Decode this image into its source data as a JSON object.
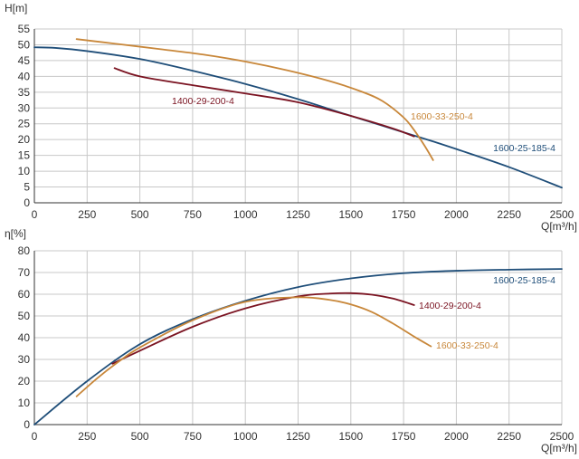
{
  "chart_data": [
    {
      "type": "line",
      "ylabel": "H[m]",
      "xlabel": "Q[m³/h]",
      "xlim": [
        0,
        2500
      ],
      "ylim": [
        0,
        55
      ],
      "xticks": [
        0,
        250,
        500,
        750,
        1000,
        1250,
        1500,
        1750,
        2000,
        2250,
        2500
      ],
      "yticks": [
        0,
        5,
        10,
        15,
        20,
        25,
        30,
        35,
        40,
        45,
        50,
        55
      ],
      "grid": true,
      "series": [
        {
          "name": "1600-25-185-4",
          "color": "#1f4e79",
          "x": [
            0,
            100,
            250,
            500,
            750,
            1000,
            1250,
            1500,
            1750,
            1900,
            2000,
            2250,
            2500
          ],
          "y": [
            49.2,
            49.0,
            48.0,
            45.5,
            41.8,
            37.6,
            32.8,
            27.5,
            22.3,
            19.2,
            17.0,
            11.3,
            4.8
          ]
        },
        {
          "name": "1400-29-200-4",
          "color": "#7b1422",
          "x": [
            380,
            500,
            750,
            1000,
            1250,
            1500,
            1700,
            1800
          ],
          "y": [
            42.6,
            40.0,
            37.2,
            34.6,
            31.8,
            27.5,
            23.5,
            21.0
          ]
        },
        {
          "name": "1600-33-250-4",
          "color": "#c8873a",
          "x": [
            200,
            400,
            600,
            800,
            1000,
            1200,
            1400,
            1550,
            1650,
            1750,
            1800,
            1850,
            1890
          ],
          "y": [
            51.8,
            50.2,
            48.6,
            46.9,
            44.7,
            41.9,
            38.5,
            35.2,
            32.2,
            27.0,
            23.0,
            18.0,
            13.5
          ]
        }
      ]
    },
    {
      "type": "line",
      "ylabel": "η[%]",
      "xlabel": "Q[m³/h]",
      "xlim": [
        0,
        2500
      ],
      "ylim": [
        0,
        80
      ],
      "xticks": [
        0,
        250,
        500,
        750,
        1000,
        1250,
        1500,
        1750,
        2000,
        2250,
        2500
      ],
      "yticks": [
        0,
        10,
        20,
        30,
        40,
        50,
        60,
        70,
        80
      ],
      "grid": true,
      "series": [
        {
          "name": "1600-25-185-4",
          "color": "#1f4e79",
          "x": [
            0,
            250,
            500,
            750,
            1000,
            1250,
            1500,
            1750,
            2000,
            2250,
            2500
          ],
          "y": [
            0,
            20,
            37,
            48.5,
            57,
            63.3,
            67.3,
            69.7,
            70.8,
            71.3,
            71.6
          ]
        },
        {
          "name": "1400-29-200-4",
          "color": "#7b1422",
          "x": [
            370,
            500,
            750,
            1000,
            1250,
            1400,
            1500,
            1600,
            1700,
            1800
          ],
          "y": [
            28,
            34,
            45,
            53.5,
            59,
            60.3,
            60.5,
            59.8,
            58,
            55
          ]
        },
        {
          "name": "1600-33-250-4",
          "color": "#c8873a",
          "x": [
            200,
            300,
            400,
            500,
            750,
            1000,
            1250,
            1400,
            1500,
            1600,
            1700,
            1800,
            1880
          ],
          "y": [
            13,
            21.5,
            29,
            35.5,
            48,
            56.5,
            58.6,
            57.4,
            55.3,
            51.8,
            46.5,
            40.5,
            36
          ]
        }
      ]
    }
  ]
}
